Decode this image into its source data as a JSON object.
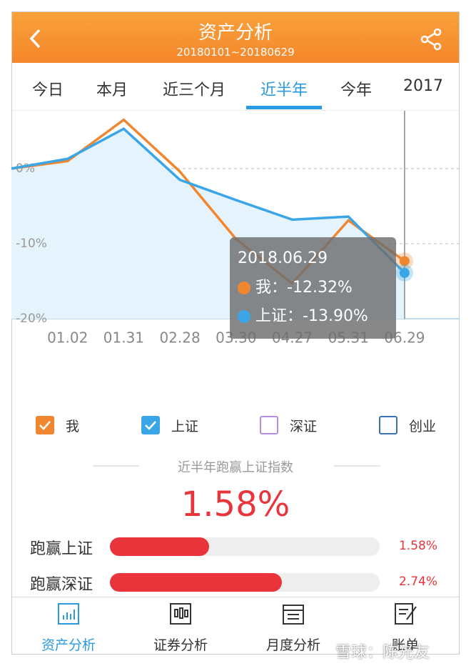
{
  "header": {
    "title": "资产分析",
    "subtitle": "20180101~20180629"
  },
  "tabs": {
    "items": [
      "今日",
      "本月",
      "近三个月",
      "近半年",
      "今年",
      "2017"
    ],
    "active": 3
  },
  "chart_data": {
    "type": "line",
    "categories": [
      null,
      "01.02",
      "01.31",
      "02.28",
      "03.30",
      "04.27",
      "05.31",
      "06.29"
    ],
    "series": [
      {
        "name": "我",
        "color": "#f0862f",
        "values": [
          0,
          1,
          6.5,
          -0.4,
          -9.4,
          -15.3,
          -6.9,
          -12.32
        ]
      },
      {
        "name": "上证",
        "color": "#3aa6e8",
        "values": [
          0,
          1.3,
          5.3,
          -1.5,
          -4.2,
          -6.8,
          -6.4,
          -13.9
        ],
        "area": true
      }
    ],
    "ylim": [
      -20,
      7.7
    ],
    "yticks": [
      {
        "value": 0,
        "label": "0%"
      },
      {
        "value": -10,
        "label": "-10%"
      },
      {
        "value": -20,
        "label": "-20%"
      }
    ],
    "grid": true,
    "tooltip": {
      "title": "2018.06.29",
      "index": 7,
      "items": [
        {
          "label": "我：",
          "value": "-12.32%"
        },
        {
          "label": "上证：",
          "value": "-13.90%"
        }
      ]
    },
    "extra_legend": [
      {
        "name": "深证",
        "color": "#b58fd8",
        "checked": false
      },
      {
        "name": "创业",
        "color": "#3d6fb3",
        "checked": false
      }
    ]
  },
  "summary": {
    "caption": "近半年跑赢上证指数",
    "value": "1.58%"
  },
  "comparison": {
    "type": "bar",
    "categories": [
      "跑赢上证",
      "跑赢深证"
    ],
    "values": [
      1.58,
      2.74
    ],
    "value_labels": [
      "1.58%",
      "2.74%"
    ],
    "xlim": [
      0,
      4.3
    ],
    "color": "#e8343a"
  },
  "nav": {
    "items": [
      "资产分析",
      "证券分析",
      "月度分析",
      "账单"
    ],
    "active": 0
  },
  "watermark": "雪球：陈光友"
}
